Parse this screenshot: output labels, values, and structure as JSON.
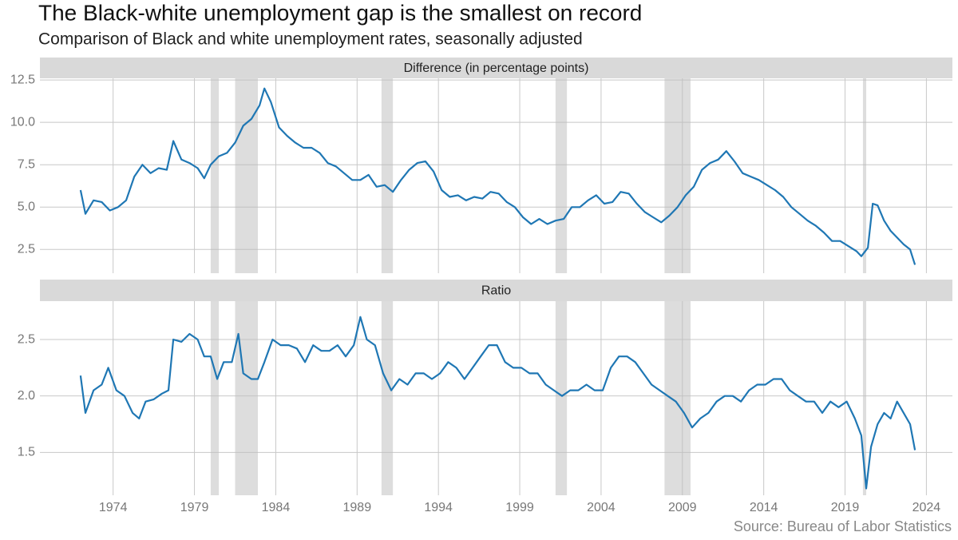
{
  "title": "The Black-white unemployment gap is the smallest on record",
  "subtitle": "Comparison of Black and white unemployment rates, seasonally adjusted",
  "source": "Source: Bureau of Labor Statistics",
  "chart_data": [
    {
      "type": "line",
      "title": "Difference (in percentage points)",
      "color": "#1f77b4",
      "x": [
        1972.0,
        1972.3,
        1972.8,
        1973.3,
        1973.8,
        1974.3,
        1974.8,
        1975.3,
        1975.8,
        1976.3,
        1976.8,
        1977.3,
        1977.7,
        1978.2,
        1978.7,
        1979.2,
        1979.6,
        1980.0,
        1980.5,
        1981.0,
        1981.5,
        1982.0,
        1982.5,
        1983.0,
        1983.3,
        1983.7,
        1984.2,
        1984.7,
        1985.2,
        1985.7,
        1986.2,
        1986.7,
        1987.2,
        1987.7,
        1988.2,
        1988.7,
        1989.2,
        1989.7,
        1990.2,
        1990.7,
        1991.2,
        1991.7,
        1992.2,
        1992.7,
        1993.2,
        1993.7,
        1994.2,
        1994.7,
        1995.2,
        1995.7,
        1996.2,
        1996.7,
        1997.2,
        1997.7,
        1998.2,
        1998.7,
        1999.2,
        1999.7,
        2000.2,
        2000.7,
        2001.2,
        2001.7,
        2002.2,
        2002.7,
        2003.2,
        2003.7,
        2004.2,
        2004.7,
        2005.2,
        2005.7,
        2006.2,
        2006.7,
        2007.2,
        2007.7,
        2008.2,
        2008.7,
        2009.2,
        2009.7,
        2010.2,
        2010.7,
        2011.2,
        2011.7,
        2012.2,
        2012.7,
        2013.2,
        2013.7,
        2014.2,
        2014.7,
        2015.2,
        2015.7,
        2016.2,
        2016.7,
        2017.2,
        2017.7,
        2018.2,
        2018.7,
        2019.2,
        2019.7,
        2020.0,
        2020.4,
        2020.7,
        2021.0,
        2021.4,
        2021.8,
        2022.2,
        2022.6,
        2023.0,
        2023.3
      ],
      "values": [
        6.0,
        4.6,
        5.4,
        5.3,
        4.8,
        5.0,
        5.4,
        6.8,
        7.5,
        7.0,
        7.3,
        7.2,
        8.9,
        7.8,
        7.6,
        7.3,
        6.7,
        7.5,
        8.0,
        8.2,
        8.8,
        9.8,
        10.2,
        11.0,
        12.0,
        11.2,
        9.7,
        9.2,
        8.8,
        8.5,
        8.5,
        8.2,
        7.6,
        7.4,
        7.0,
        6.6,
        6.6,
        6.9,
        6.2,
        6.3,
        5.9,
        6.6,
        7.2,
        7.6,
        7.7,
        7.1,
        6.0,
        5.6,
        5.7,
        5.4,
        5.6,
        5.5,
        5.9,
        5.8,
        5.3,
        5.0,
        4.4,
        4.0,
        4.3,
        4.0,
        4.2,
        4.3,
        5.0,
        5.0,
        5.4,
        5.7,
        5.2,
        5.3,
        5.9,
        5.8,
        5.2,
        4.7,
        4.4,
        4.1,
        4.5,
        5.0,
        5.7,
        6.2,
        7.2,
        7.6,
        7.8,
        8.3,
        7.7,
        7.0,
        6.8,
        6.6,
        6.3,
        6.0,
        5.6,
        5.0,
        4.6,
        4.2,
        3.9,
        3.5,
        3.0,
        3.0,
        2.7,
        2.4,
        2.1,
        2.6,
        5.2,
        5.1,
        4.2,
        3.6,
        3.2,
        2.8,
        2.5,
        1.6
      ],
      "recessions": [
        [
          1980.0,
          1980.5
        ],
        [
          1981.5,
          1982.9
        ],
        [
          1990.5,
          1991.2
        ],
        [
          2001.2,
          2001.9
        ],
        [
          2007.9,
          2009.5
        ],
        [
          2020.1,
          2020.3
        ]
      ],
      "xlim": [
        1969.5,
        2025.6
      ],
      "xticks": [
        1974,
        1979,
        1984,
        1989,
        1994,
        1999,
        2004,
        2009,
        2014,
        2019,
        2024
      ],
      "ylim": [
        1.1,
        12.6
      ],
      "yticks": [
        12.5,
        {
          "value": 10,
          "label": "10.0"
        },
        7.5,
        {
          "value": 5,
          "label": "5.0"
        },
        2.5
      ]
    },
    {
      "type": "line",
      "title": "Ratio",
      "color": "#1f77b4",
      "x": [
        1972.0,
        1972.3,
        1972.8,
        1973.3,
        1973.7,
        1974.2,
        1974.7,
        1975.2,
        1975.6,
        1976.0,
        1976.5,
        1977.0,
        1977.4,
        1977.7,
        1978.2,
        1978.7,
        1979.2,
        1979.6,
        1980.0,
        1980.4,
        1980.8,
        1981.3,
        1981.7,
        1982.0,
        1982.5,
        1982.9,
        1983.3,
        1983.8,
        1984.3,
        1984.8,
        1985.3,
        1985.8,
        1986.3,
        1986.8,
        1987.3,
        1987.8,
        1988.3,
        1988.8,
        1989.2,
        1989.6,
        1990.1,
        1990.6,
        1991.1,
        1991.6,
        1992.1,
        1992.6,
        1993.1,
        1993.6,
        1994.1,
        1994.6,
        1995.1,
        1995.6,
        1996.1,
        1996.6,
        1997.1,
        1997.6,
        1998.1,
        1998.6,
        1999.1,
        1999.6,
        2000.1,
        2000.6,
        2001.1,
        2001.6,
        2002.1,
        2002.6,
        2003.1,
        2003.6,
        2004.1,
        2004.6,
        2005.1,
        2005.6,
        2006.1,
        2006.6,
        2007.1,
        2007.6,
        2008.1,
        2008.6,
        2009.1,
        2009.6,
        2010.1,
        2010.6,
        2011.1,
        2011.6,
        2012.1,
        2012.6,
        2013.1,
        2013.6,
        2014.1,
        2014.6,
        2015.1,
        2015.6,
        2016.1,
        2016.6,
        2017.1,
        2017.6,
        2018.1,
        2018.6,
        2019.1,
        2019.6,
        2020.0,
        2020.3,
        2020.6,
        2021.0,
        2021.4,
        2021.8,
        2022.2,
        2022.6,
        2023.0,
        2023.3
      ],
      "values": [
        2.18,
        1.85,
        2.05,
        2.1,
        2.25,
        2.05,
        2.0,
        1.85,
        1.8,
        1.95,
        1.97,
        2.02,
        2.05,
        2.5,
        2.48,
        2.55,
        2.5,
        2.35,
        2.35,
        2.15,
        2.3,
        2.3,
        2.55,
        2.2,
        2.15,
        2.15,
        2.3,
        2.5,
        2.45,
        2.45,
        2.42,
        2.3,
        2.45,
        2.4,
        2.4,
        2.45,
        2.35,
        2.45,
        2.7,
        2.5,
        2.45,
        2.2,
        2.05,
        2.15,
        2.1,
        2.2,
        2.2,
        2.15,
        2.2,
        2.3,
        2.25,
        2.15,
        2.25,
        2.35,
        2.45,
        2.45,
        2.3,
        2.25,
        2.25,
        2.2,
        2.2,
        2.1,
        2.05,
        2.0,
        2.05,
        2.05,
        2.1,
        2.05,
        2.05,
        2.25,
        2.35,
        2.35,
        2.3,
        2.2,
        2.1,
        2.05,
        2.0,
        1.95,
        1.85,
        1.72,
        1.8,
        1.85,
        1.95,
        2.0,
        2.0,
        1.95,
        2.05,
        2.1,
        2.1,
        2.15,
        2.15,
        2.05,
        2.0,
        1.95,
        1.95,
        1.85,
        1.95,
        1.9,
        1.95,
        1.8,
        1.65,
        1.18,
        1.55,
        1.75,
        1.85,
        1.8,
        1.95,
        1.85,
        1.75,
        1.52
      ],
      "recessions": [
        [
          1980.0,
          1980.5
        ],
        [
          1981.5,
          1982.9
        ],
        [
          1990.5,
          1991.2
        ],
        [
          2001.2,
          2001.9
        ],
        [
          2007.9,
          2009.5
        ],
        [
          2020.1,
          2020.3
        ]
      ],
      "xlim": [
        1969.5,
        2025.6
      ],
      "xticks": [
        1974,
        1979,
        1984,
        1989,
        1994,
        1999,
        2004,
        2009,
        2014,
        2019,
        2024
      ],
      "ylim": [
        1.12,
        2.84
      ],
      "yticks": [
        2.5,
        {
          "value": 2,
          "label": "2.0"
        },
        1.5
      ]
    }
  ]
}
